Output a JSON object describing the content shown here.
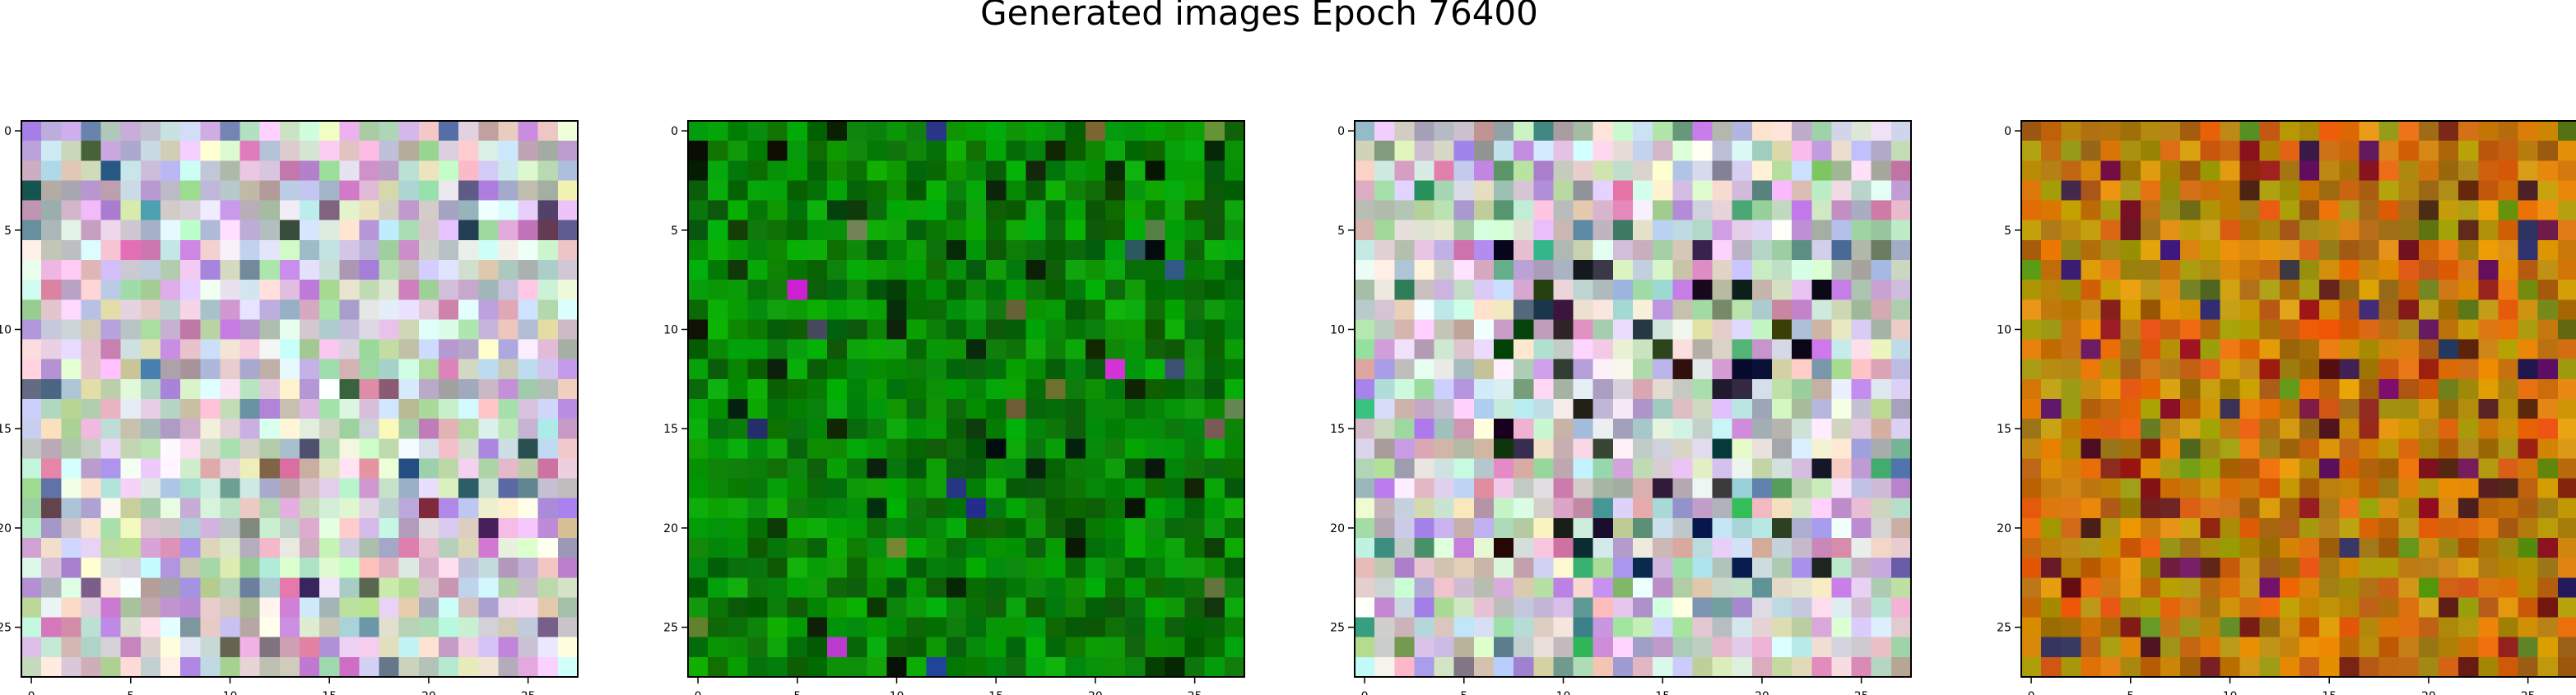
{
  "figure": {
    "suptitle": "Generated images Epoch 76400"
  },
  "panels": [
    {
      "name": "generated-image-1",
      "grid_size": 28,
      "palette": "pastel",
      "x_ticks": [
        "0",
        "5",
        "10",
        "15",
        "20",
        "25"
      ],
      "y_ticks": [
        "0",
        "5",
        "10",
        "15",
        "20",
        "25"
      ]
    },
    {
      "name": "generated-image-2",
      "grid_size": 28,
      "palette": "green",
      "x_ticks": [
        "0",
        "5",
        "10",
        "15",
        "20",
        "25"
      ],
      "y_ticks": [
        "0",
        "5",
        "10",
        "15",
        "20",
        "25"
      ]
    },
    {
      "name": "generated-image-3",
      "grid_size": 28,
      "palette": "pastel-dark-core",
      "x_ticks": [
        "0",
        "5",
        "10",
        "15",
        "20",
        "25"
      ],
      "y_ticks": [
        "0",
        "5",
        "10",
        "15",
        "20",
        "25"
      ]
    },
    {
      "name": "generated-image-4",
      "grid_size": 28,
      "palette": "orange-olive",
      "x_ticks": [
        "0",
        "5",
        "10",
        "15",
        "20",
        "25"
      ],
      "y_ticks": [
        "0",
        "5",
        "10",
        "15",
        "20",
        "25"
      ]
    }
  ],
  "colors": {
    "background": "#ffffff",
    "axis": "#000000",
    "text": "#000000"
  }
}
